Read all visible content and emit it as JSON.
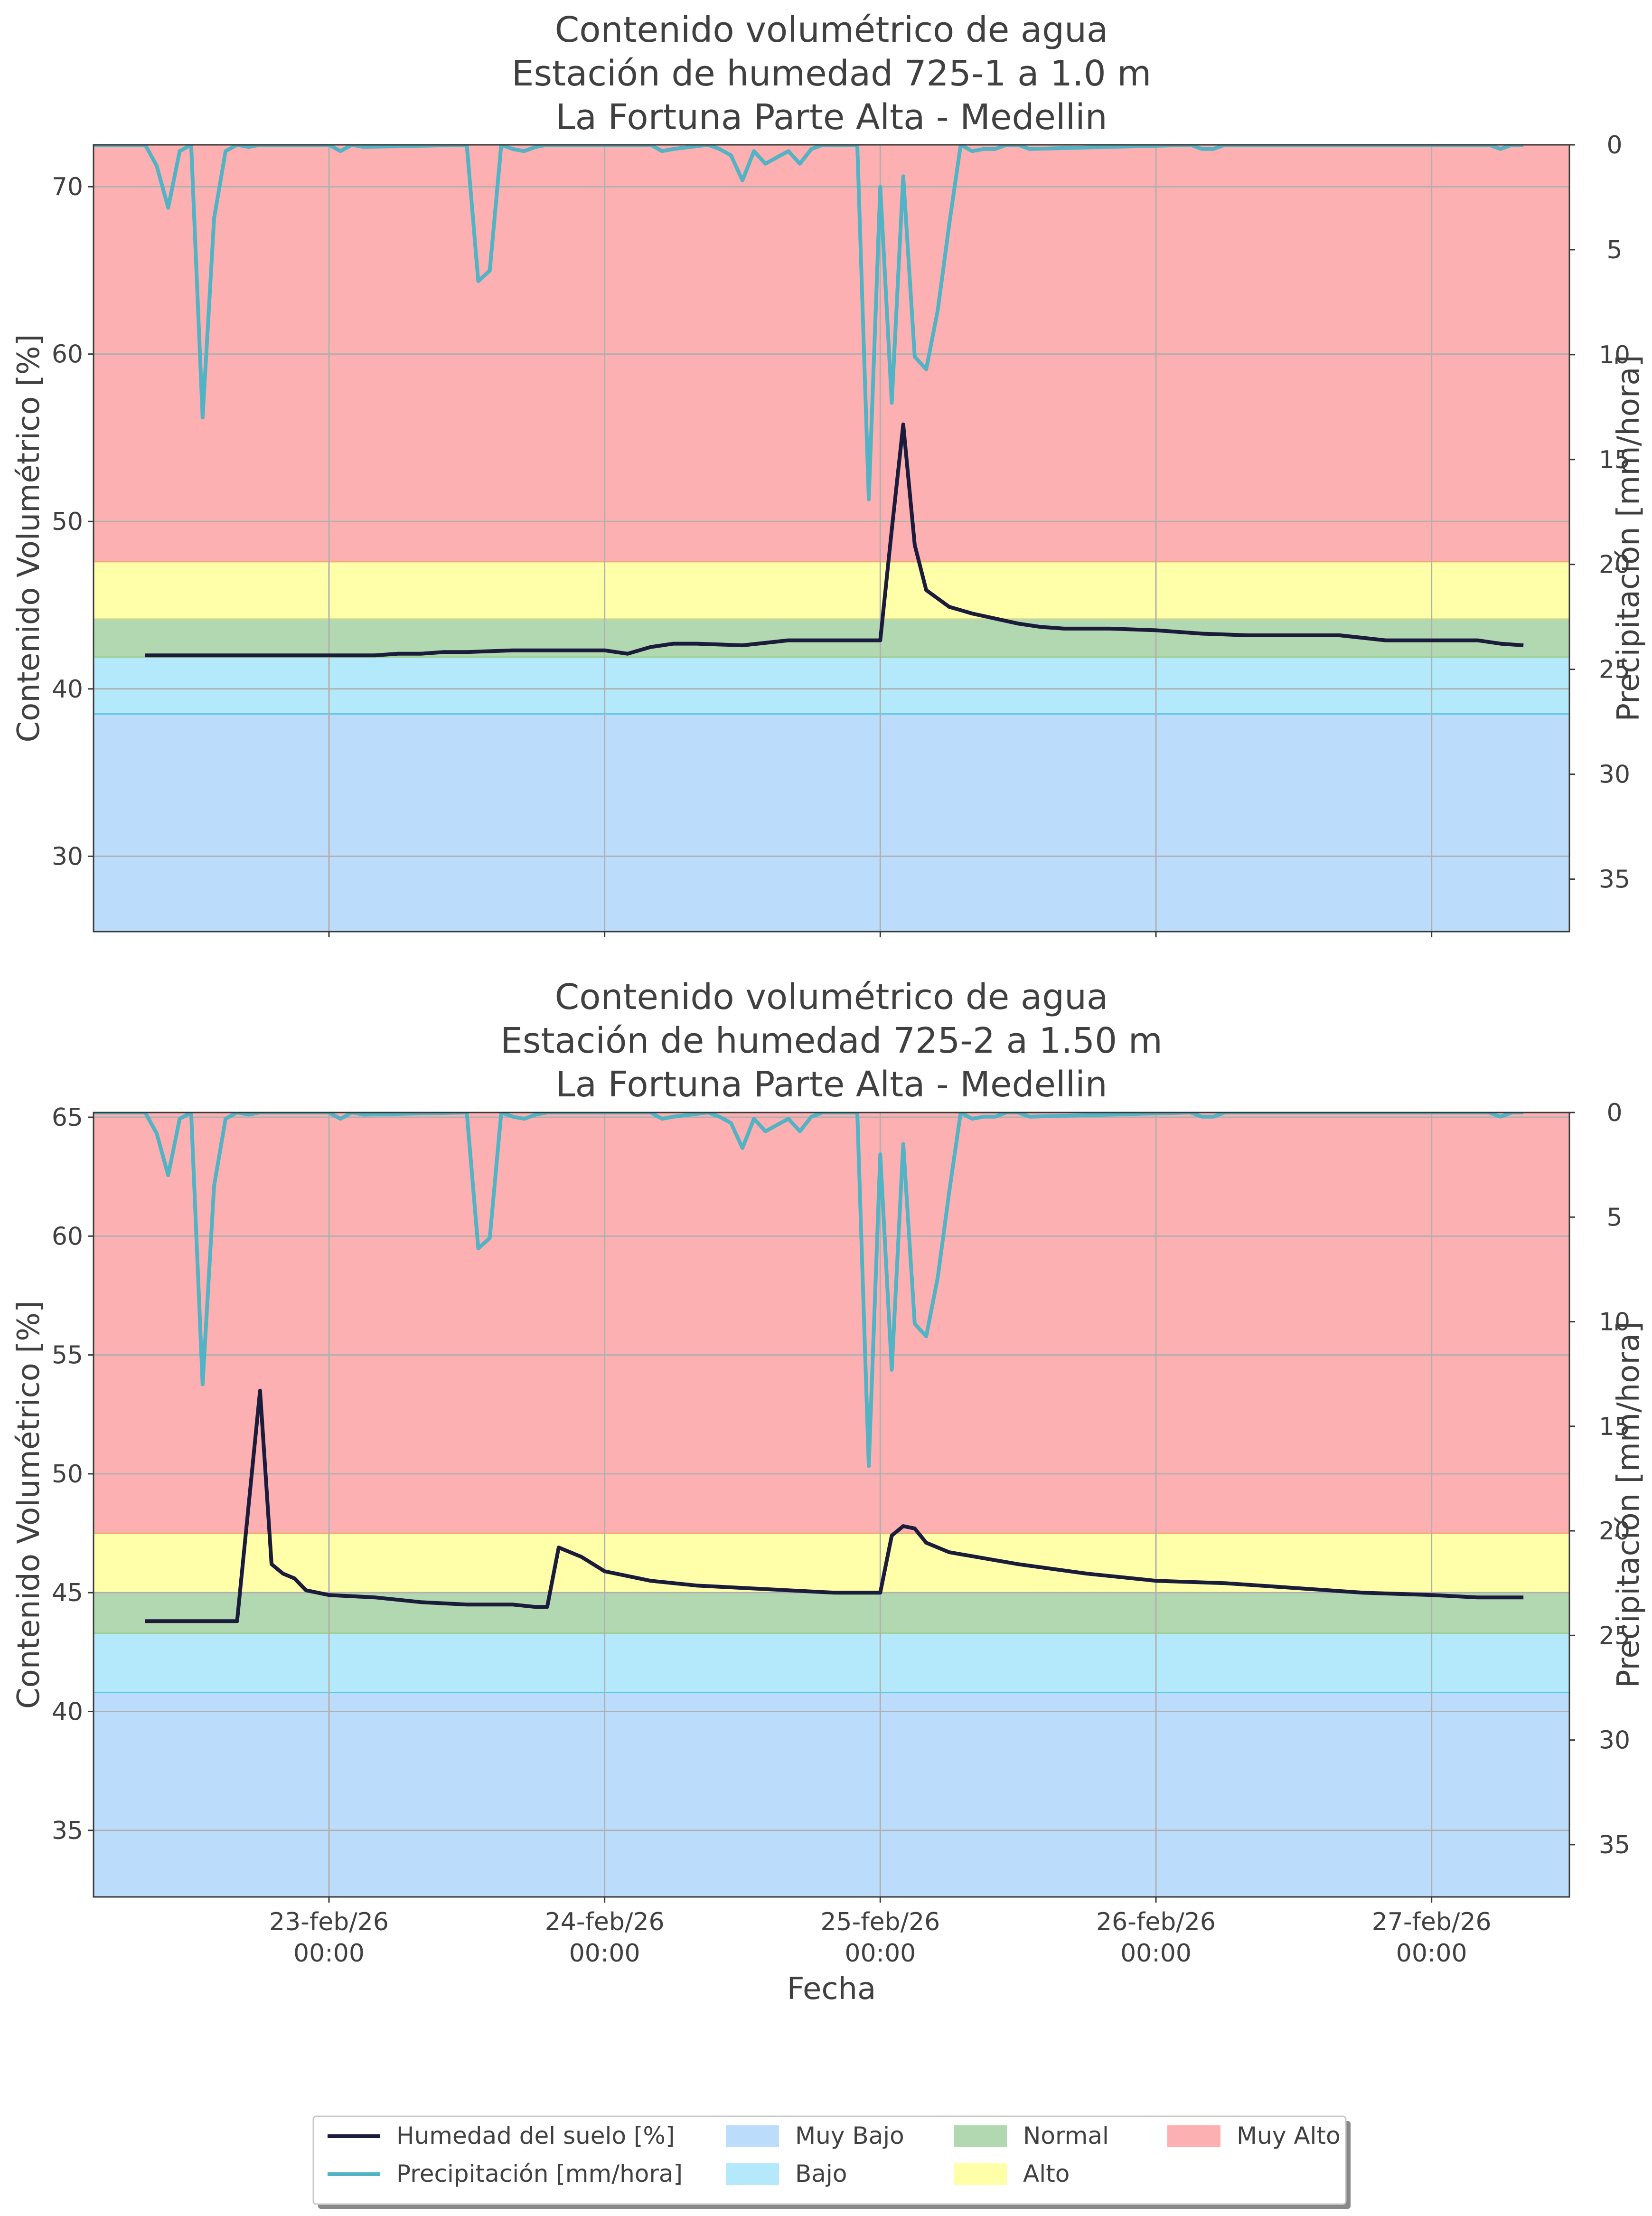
{
  "colors": {
    "muy_bajo": "#bcdcfb",
    "bajo": "#b3e9fb",
    "normal": "#b2d8b1",
    "alto": "#ffffaa",
    "muy_alto": "#fdb0b1",
    "soil_line": "#1b1c3c",
    "precip_line": "#52b3c4"
  },
  "chart_data": [
    {
      "type": "line",
      "title": [
        "Contenido volumétrico de agua",
        "Estación de humedad 725-1 a 1.0 m",
        "La Fortuna Parte Alta - Medellin"
      ],
      "ylabel": "Contenido Volumétrico [%]",
      "y2label": "Precipitación [mm/hora]",
      "xlabel": "",
      "x_ticks": [
        "23-feb/26 00:00",
        "24-feb/26 00:00",
        "25-feb/26 00:00",
        "26-feb/26 00:00",
        "27-feb/26 00:00"
      ],
      "x_tick_labels_visible": false,
      "xlim": [
        "2026-02-22 03:30",
        "2026-02-27 12:00"
      ],
      "ylim": [
        25.5,
        72.5
      ],
      "y_ticks": [
        30,
        40,
        50,
        60,
        70
      ],
      "y2lim": [
        0,
        37.5
      ],
      "y2_inverted": true,
      "y2_ticks": [
        0,
        5,
        10,
        15,
        20,
        25,
        30,
        35
      ],
      "grid": true,
      "bands": [
        {
          "name": "Muy Bajo",
          "from": 25.5,
          "to": 38.5
        },
        {
          "name": "Bajo",
          "from": 38.5,
          "to": 41.9
        },
        {
          "name": "Normal",
          "from": 41.9,
          "to": 44.2
        },
        {
          "name": "Alto",
          "from": 44.2,
          "to": 47.6
        },
        {
          "name": "Muy Alto",
          "from": 47.6,
          "to": 72.5
        }
      ],
      "series": [
        {
          "name": "Humedad del suelo [%]",
          "x": [
            "2026-02-22 08:00",
            "2026-02-22 10:00",
            "2026-02-22 12:00",
            "2026-02-22 16:00",
            "2026-02-22 20:00",
            "2026-02-23 00:00",
            "2026-02-23 04:00",
            "2026-02-23 06:00",
            "2026-02-23 08:00",
            "2026-02-23 10:00",
            "2026-02-23 12:00",
            "2026-02-23 16:00",
            "2026-02-23 20:00",
            "2026-02-23 22:00",
            "2026-02-24 00:00",
            "2026-02-24 02:00",
            "2026-02-24 04:00",
            "2026-02-24 06:00",
            "2026-02-24 08:00",
            "2026-02-24 12:00",
            "2026-02-24 16:00",
            "2026-02-24 20:00",
            "2026-02-25 00:00",
            "2026-02-25 01:00",
            "2026-02-25 02:00",
            "2026-02-25 03:00",
            "2026-02-25 04:00",
            "2026-02-25 05:00",
            "2026-02-25 06:00",
            "2026-02-25 08:00",
            "2026-02-25 10:00",
            "2026-02-25 12:00",
            "2026-02-25 14:00",
            "2026-02-25 16:00",
            "2026-02-25 20:00",
            "2026-02-26 00:00",
            "2026-02-26 04:00",
            "2026-02-26 08:00",
            "2026-02-26 12:00",
            "2026-02-26 16:00",
            "2026-02-26 20:00",
            "2026-02-27 00:00",
            "2026-02-27 02:00",
            "2026-02-27 04:00",
            "2026-02-27 06:00",
            "2026-02-27 08:00"
          ],
          "values": [
            42.0,
            42.0,
            42.0,
            42.0,
            42.0,
            42.0,
            42.0,
            42.1,
            42.1,
            42.2,
            42.2,
            42.3,
            42.3,
            42.3,
            42.3,
            42.1,
            42.5,
            42.7,
            42.7,
            42.6,
            42.9,
            42.9,
            42.9,
            49.5,
            55.8,
            48.6,
            45.9,
            45.4,
            44.9,
            44.5,
            44.2,
            43.9,
            43.7,
            43.6,
            43.6,
            43.5,
            43.3,
            43.2,
            43.2,
            43.2,
            42.9,
            42.9,
            42.9,
            42.9,
            42.7,
            42.6
          ]
        },
        {
          "name": "Precipitación [mm/hora]",
          "x": [
            "2026-02-22 03:00",
            "2026-02-22 08:00",
            "2026-02-22 09:00",
            "2026-02-22 10:00",
            "2026-02-22 11:00",
            "2026-02-22 12:00",
            "2026-02-22 13:00",
            "2026-02-22 14:00",
            "2026-02-22 15:00",
            "2026-02-22 16:00",
            "2026-02-22 17:00",
            "2026-02-22 18:00",
            "2026-02-23 00:00",
            "2026-02-23 01:00",
            "2026-02-23 02:00",
            "2026-02-23 03:00",
            "2026-02-23 12:00",
            "2026-02-23 13:00",
            "2026-02-23 14:00",
            "2026-02-23 15:00",
            "2026-02-23 16:00",
            "2026-02-23 17:00",
            "2026-02-23 18:00",
            "2026-02-23 19:00",
            "2026-02-24 04:00",
            "2026-02-24 05:00",
            "2026-02-24 06:00",
            "2026-02-24 09:00",
            "2026-02-24 10:00",
            "2026-02-24 11:00",
            "2026-02-24 12:00",
            "2026-02-24 13:00",
            "2026-02-24 14:00",
            "2026-02-24 15:00",
            "2026-02-24 16:00",
            "2026-02-24 17:00",
            "2026-02-24 18:00",
            "2026-02-24 19:00",
            "2026-02-24 20:00",
            "2026-02-24 21:00",
            "2026-02-24 22:00",
            "2026-02-24 23:00",
            "2026-02-25 00:00",
            "2026-02-25 01:00",
            "2026-02-25 02:00",
            "2026-02-25 03:00",
            "2026-02-25 04:00",
            "2026-02-25 05:00",
            "2026-02-25 06:00",
            "2026-02-25 07:00",
            "2026-02-25 08:00",
            "2026-02-25 09:00",
            "2026-02-25 10:00",
            "2026-02-25 11:00",
            "2026-02-25 12:00",
            "2026-02-25 13:00",
            "2026-02-26 03:00",
            "2026-02-26 04:00",
            "2026-02-26 05:00",
            "2026-02-26 06:00",
            "2026-02-27 05:00",
            "2026-02-27 06:00",
            "2026-02-27 07:00",
            "2026-02-27 08:00"
          ],
          "values": [
            0,
            0,
            1.0,
            3.0,
            0.3,
            0,
            13.0,
            3.5,
            0.3,
            0,
            0.1,
            0,
            0,
            0.3,
            0,
            0.1,
            0,
            6.5,
            6.0,
            0,
            0.2,
            0.3,
            0.1,
            0,
            0,
            0.3,
            0.2,
            0,
            0.2,
            0.5,
            1.7,
            0.3,
            0.9,
            0.6,
            0.3,
            0.9,
            0.2,
            0,
            0,
            0,
            0,
            16.9,
            2.0,
            12.3,
            1.5,
            10.1,
            10.7,
            7.9,
            3.8,
            0,
            0.3,
            0.2,
            0.2,
            0,
            0,
            0.2,
            0,
            0.2,
            0.2,
            0,
            0,
            0.2,
            0,
            0
          ]
        }
      ]
    },
    {
      "type": "line",
      "title": [
        "Contenido volumétrico de agua",
        "Estación de humedad 725-2 a 1.50 m",
        "La Fortuna Parte Alta - Medellin"
      ],
      "ylabel": "Contenido Volumétrico [%]",
      "y2label": "Precipitación [mm/hora]",
      "xlabel": "Fecha",
      "x_ticks": [
        "23-feb/26 00:00",
        "24-feb/26 00:00",
        "25-feb/26 00:00",
        "26-feb/26 00:00",
        "27-feb/26 00:00"
      ],
      "x_tick_labels_visible": true,
      "xlim": [
        "2026-02-22 03:30",
        "2026-02-27 12:00"
      ],
      "ylim": [
        32.2,
        65.2
      ],
      "y_ticks": [
        35,
        40,
        45,
        50,
        55,
        60,
        65
      ],
      "y2lim": [
        0,
        37.5
      ],
      "y2_inverted": true,
      "y2_ticks": [
        0,
        5,
        10,
        15,
        20,
        25,
        30,
        35
      ],
      "grid": true,
      "bands": [
        {
          "name": "Muy Bajo",
          "from": 32.2,
          "to": 40.8
        },
        {
          "name": "Bajo",
          "from": 40.8,
          "to": 43.3
        },
        {
          "name": "Normal",
          "from": 43.3,
          "to": 45.0
        },
        {
          "name": "Alto",
          "from": 45.0,
          "to": 47.5
        },
        {
          "name": "Muy Alto",
          "from": 47.5,
          "to": 65.2
        }
      ],
      "series": [
        {
          "name": "Humedad del suelo [%]",
          "x": [
            "2026-02-22 08:00",
            "2026-02-22 10:00",
            "2026-02-22 12:00",
            "2026-02-22 14:00",
            "2026-02-22 16:00",
            "2026-02-22 18:00",
            "2026-02-22 19:00",
            "2026-02-22 20:00",
            "2026-02-22 21:00",
            "2026-02-22 22:00",
            "2026-02-23 00:00",
            "2026-02-23 04:00",
            "2026-02-23 08:00",
            "2026-02-23 12:00",
            "2026-02-23 16:00",
            "2026-02-23 18:00",
            "2026-02-23 19:00",
            "2026-02-23 20:00",
            "2026-02-23 22:00",
            "2026-02-24 00:00",
            "2026-02-24 04:00",
            "2026-02-24 08:00",
            "2026-02-24 12:00",
            "2026-02-24 16:00",
            "2026-02-24 20:00",
            "2026-02-25 00:00",
            "2026-02-25 01:00",
            "2026-02-25 02:00",
            "2026-02-25 03:00",
            "2026-02-25 04:00",
            "2026-02-25 06:00",
            "2026-02-25 12:00",
            "2026-02-25 18:00",
            "2026-02-26 00:00",
            "2026-02-26 06:00",
            "2026-02-26 12:00",
            "2026-02-26 18:00",
            "2026-02-27 00:00",
            "2026-02-27 04:00",
            "2026-02-27 08:00"
          ],
          "values": [
            43.8,
            43.8,
            43.8,
            43.8,
            43.8,
            53.5,
            46.2,
            45.8,
            45.6,
            45.1,
            44.9,
            44.8,
            44.6,
            44.5,
            44.5,
            44.4,
            44.4,
            46.9,
            46.5,
            45.9,
            45.5,
            45.3,
            45.2,
            45.1,
            45.0,
            45.0,
            47.4,
            47.8,
            47.7,
            47.1,
            46.7,
            46.2,
            45.8,
            45.5,
            45.4,
            45.2,
            45.0,
            44.9,
            44.8,
            44.8
          ]
        },
        {
          "name": "Precipitación [mm/hora]",
          "x": [
            "2026-02-22 03:00",
            "2026-02-22 08:00",
            "2026-02-22 09:00",
            "2026-02-22 10:00",
            "2026-02-22 11:00",
            "2026-02-22 12:00",
            "2026-02-22 13:00",
            "2026-02-22 14:00",
            "2026-02-22 15:00",
            "2026-02-22 16:00",
            "2026-02-22 17:00",
            "2026-02-22 18:00",
            "2026-02-23 00:00",
            "2026-02-23 01:00",
            "2026-02-23 02:00",
            "2026-02-23 03:00",
            "2026-02-23 12:00",
            "2026-02-23 13:00",
            "2026-02-23 14:00",
            "2026-02-23 15:00",
            "2026-02-23 16:00",
            "2026-02-23 17:00",
            "2026-02-23 18:00",
            "2026-02-23 19:00",
            "2026-02-24 04:00",
            "2026-02-24 05:00",
            "2026-02-24 06:00",
            "2026-02-24 09:00",
            "2026-02-24 10:00",
            "2026-02-24 11:00",
            "2026-02-24 12:00",
            "2026-02-24 13:00",
            "2026-02-24 14:00",
            "2026-02-24 15:00",
            "2026-02-24 16:00",
            "2026-02-24 17:00",
            "2026-02-24 18:00",
            "2026-02-24 19:00",
            "2026-02-24 20:00",
            "2026-02-24 21:00",
            "2026-02-24 22:00",
            "2026-02-24 23:00",
            "2026-02-25 00:00",
            "2026-02-25 01:00",
            "2026-02-25 02:00",
            "2026-02-25 03:00",
            "2026-02-25 04:00",
            "2026-02-25 05:00",
            "2026-02-25 06:00",
            "2026-02-25 07:00",
            "2026-02-25 08:00",
            "2026-02-25 09:00",
            "2026-02-25 10:00",
            "2026-02-25 11:00",
            "2026-02-25 12:00",
            "2026-02-25 13:00",
            "2026-02-26 03:00",
            "2026-02-26 04:00",
            "2026-02-26 05:00",
            "2026-02-26 06:00",
            "2026-02-27 05:00",
            "2026-02-27 06:00",
            "2026-02-27 07:00",
            "2026-02-27 08:00"
          ],
          "values": [
            0,
            0,
            1.0,
            3.0,
            0.3,
            0,
            13.0,
            3.5,
            0.3,
            0,
            0.1,
            0,
            0,
            0.3,
            0,
            0.1,
            0,
            6.5,
            6.0,
            0,
            0.2,
            0.3,
            0.1,
            0,
            0,
            0.3,
            0.2,
            0,
            0.2,
            0.5,
            1.7,
            0.3,
            0.9,
            0.6,
            0.3,
            0.9,
            0.2,
            0,
            0,
            0,
            0,
            16.9,
            2.0,
            12.3,
            1.5,
            10.1,
            10.7,
            7.9,
            3.8,
            0,
            0.3,
            0.2,
            0.2,
            0,
            0,
            0.2,
            0,
            0.2,
            0.2,
            0,
            0,
            0.2,
            0,
            0
          ]
        }
      ]
    }
  ],
  "legend": {
    "placement": "bottom-center",
    "entries": [
      {
        "label": "Humedad del suelo [%]",
        "kind": "line",
        "color_key": "soil_line"
      },
      {
        "label": "Precipitación [mm/hora]",
        "kind": "line",
        "color_key": "precip_line"
      },
      {
        "label": "Muy Bajo",
        "kind": "patch",
        "color_key": "muy_bajo"
      },
      {
        "label": "Bajo",
        "kind": "patch",
        "color_key": "bajo"
      },
      {
        "label": "Normal",
        "kind": "patch",
        "color_key": "normal"
      },
      {
        "label": "Alto",
        "kind": "patch",
        "color_key": "alto"
      },
      {
        "label": "Muy Alto",
        "kind": "patch",
        "color_key": "muy_alto"
      }
    ]
  }
}
